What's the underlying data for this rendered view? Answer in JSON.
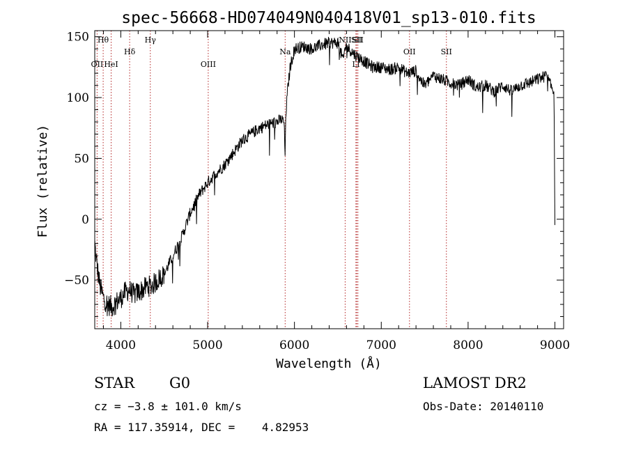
{
  "chart_data": {
    "type": "line",
    "title": "spec-56668-HD074049N040418V01_sp13-010.fits",
    "xlabel": "Wavelength (Å)",
    "ylabel": "Flux (relative)",
    "xlim": [
      3700,
      9100
    ],
    "ylim": [
      -90,
      155
    ],
    "xticks": [
      4000,
      5000,
      6000,
      7000,
      8000,
      9000
    ],
    "yticks": [
      -50,
      0,
      50,
      100,
      150
    ],
    "grid": false,
    "legend": "none",
    "line_color": "#000000",
    "marker_color": "#b22222",
    "lines": [
      {
        "label": "Hθ",
        "x": 3797,
        "row": "top"
      },
      {
        "label": "OII",
        "x": 3727,
        "row": "low"
      },
      {
        "label": "HeI",
        "x": 3889,
        "row": "low"
      },
      {
        "label": "Hδ",
        "x": 4102,
        "row": "mid"
      },
      {
        "label": "Hγ",
        "x": 4340,
        "row": "top"
      },
      {
        "label": "OIII",
        "x": 5007,
        "row": "low"
      },
      {
        "label": "Na",
        "x": 5893,
        "row": "mid"
      },
      {
        "label": "NII",
        "x": 6584,
        "row": "top"
      },
      {
        "label": "SII",
        "x": 6717,
        "row": "top"
      },
      {
        "label": "Li",
        "x": 6708,
        "row": "low"
      },
      {
        "label": "SII",
        "x": 6731,
        "row": "top"
      },
      {
        "label": "OII",
        "x": 7325,
        "row": "mid"
      },
      {
        "label": "SII",
        "x": 7750,
        "row": "mid"
      }
    ],
    "series": [
      {
        "anchors_x": [
          3700,
          3720,
          3760,
          3800,
          3850,
          3900,
          3950,
          4000,
          4050,
          4100,
          4150,
          4200,
          4250,
          4300,
          4350,
          4400,
          4450,
          4500,
          4600,
          4700,
          4800,
          4900,
          5000,
          5100,
          5200,
          5300,
          5400,
          5500,
          5600,
          5700,
          5800,
          5850,
          5880,
          5893,
          5900,
          5920,
          5950,
          6000,
          6100,
          6200,
          6300,
          6400,
          6500,
          6563,
          6580,
          6600,
          6700,
          6800,
          6900,
          7000,
          7100,
          7200,
          7300,
          7400,
          7450,
          7500,
          7600,
          7700,
          7800,
          7900,
          8000,
          8100,
          8200,
          8300,
          8400,
          8500,
          8600,
          8700,
          8800,
          8900,
          8950,
          8990,
          9000
        ],
        "anchors_y": [
          -20,
          -35,
          -55,
          -65,
          -70,
          -72,
          -68,
          -65,
          -60,
          -58,
          -62,
          -60,
          -58,
          -55,
          -55,
          -52,
          -48,
          -45,
          -30,
          -15,
          5,
          20,
          30,
          38,
          45,
          55,
          65,
          70,
          75,
          78,
          80,
          82,
          80,
          50,
          85,
          105,
          125,
          140,
          142,
          140,
          143,
          145,
          145,
          130,
          140,
          142,
          135,
          130,
          125,
          125,
          123,
          125,
          120,
          122,
          115,
          110,
          118,
          115,
          112,
          110,
          115,
          108,
          110,
          105,
          110,
          105,
          110,
          112,
          115,
          118,
          110,
          105,
          0
        ]
      }
    ]
  },
  "info": {
    "object_type": "STAR",
    "subclass": "G0",
    "survey": "LAMOST DR2",
    "redshift": "cz = −3.8 ± 101.0 km/s",
    "obs_date": "Obs-Date: 20140110",
    "coords": "RA = 117.35914, DEC =    4.82953"
  }
}
